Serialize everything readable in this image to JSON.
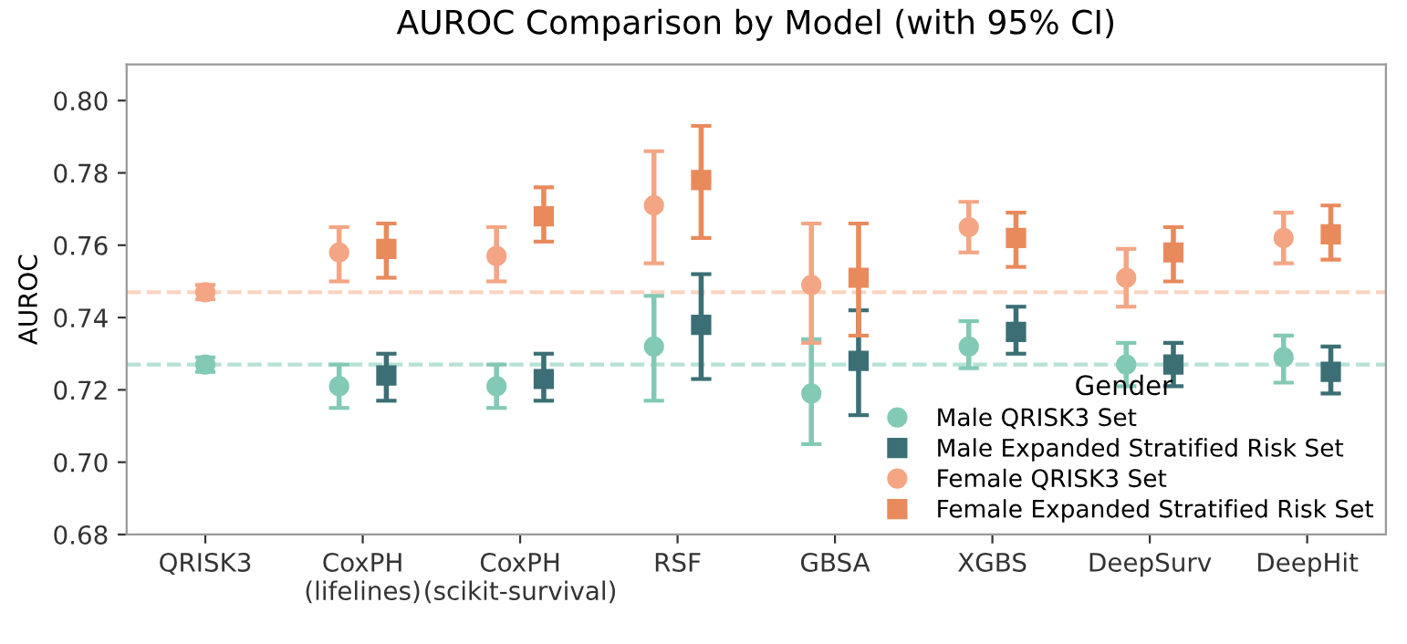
{
  "chart_data": {
    "type": "scatter",
    "title": "AUROC Comparison by Model (with 95% CI)",
    "ylabel": "AUROC",
    "legend_title": "Gender",
    "categories": [
      "QRISK3",
      "CoxPH\n(lifelines)",
      "CoxPH\n(scikit-survival)",
      "RSF",
      "GBSA",
      "XGBS",
      "DeepSurv",
      "DeepHit"
    ],
    "series": [
      {
        "name": "Male QRISK3 Set",
        "color": "#82c9b6",
        "marker": "circle",
        "values": [
          0.727,
          0.721,
          0.721,
          0.732,
          0.719,
          0.732,
          0.727,
          0.729
        ],
        "errors": [
          [
            0.725,
            0.729
          ],
          [
            0.715,
            0.727
          ],
          [
            0.715,
            0.727
          ],
          [
            0.717,
            0.746
          ],
          [
            0.705,
            0.734
          ],
          [
            0.726,
            0.739
          ],
          [
            0.721,
            0.733
          ],
          [
            0.722,
            0.735
          ]
        ]
      },
      {
        "name": "Male Expanded Stratified Risk Set",
        "color": "#3b6f75",
        "marker": "square",
        "values": [
          null,
          0.724,
          0.723,
          0.738,
          0.728,
          0.736,
          0.727,
          0.725
        ],
        "errors": [
          null,
          [
            0.717,
            0.73
          ],
          [
            0.717,
            0.73
          ],
          [
            0.723,
            0.752
          ],
          [
            0.713,
            0.742
          ],
          [
            0.73,
            0.743
          ],
          [
            0.721,
            0.733
          ],
          [
            0.719,
            0.732
          ]
        ]
      },
      {
        "name": "Female QRISK3 Set",
        "color": "#f4a583",
        "marker": "circle",
        "values": [
          0.747,
          0.758,
          0.757,
          0.771,
          0.749,
          0.765,
          0.751,
          0.762
        ],
        "errors": [
          [
            0.745,
            0.749
          ],
          [
            0.75,
            0.765
          ],
          [
            0.75,
            0.765
          ],
          [
            0.755,
            0.786
          ],
          [
            0.733,
            0.766
          ],
          [
            0.758,
            0.772
          ],
          [
            0.743,
            0.759
          ],
          [
            0.755,
            0.769
          ]
        ]
      },
      {
        "name": "Female Expanded Stratified Risk Set",
        "color": "#e98a5c",
        "marker": "square",
        "values": [
          null,
          0.759,
          0.768,
          0.778,
          0.751,
          0.762,
          0.758,
          0.763
        ],
        "errors": [
          null,
          [
            0.751,
            0.766
          ],
          [
            0.761,
            0.776
          ],
          [
            0.762,
            0.793
          ],
          [
            0.735,
            0.766
          ],
          [
            0.754,
            0.769
          ],
          [
            0.75,
            0.765
          ],
          [
            0.756,
            0.771
          ]
        ]
      }
    ],
    "ref_lines": [
      {
        "axis": "y",
        "value": 0.747,
        "color": "#fbd3bf",
        "line_style": "dashed"
      },
      {
        "axis": "y",
        "value": 0.727,
        "color": "#b6e2d6",
        "line_style": "dashed"
      }
    ],
    "ylim": [
      0.68,
      0.81
    ],
    "yticks": [
      0.68,
      {
        "value": 0.7,
        "label": "0.70"
      },
      0.72,
      0.74,
      0.76,
      0.78,
      {
        "value": 0.8,
        "label": "0.80"
      }
    ],
    "grid": false,
    "legend": "bottom right"
  }
}
